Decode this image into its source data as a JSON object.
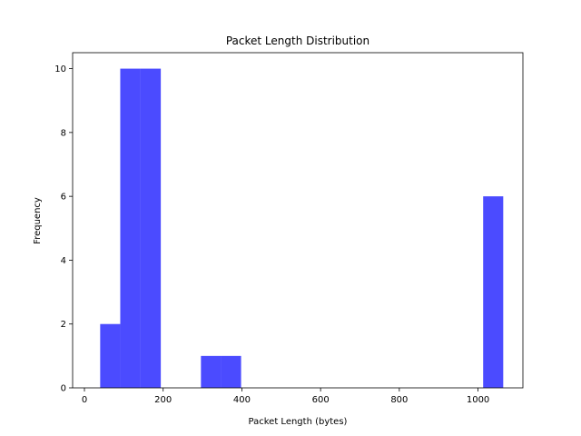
{
  "chart_data": {
    "type": "bar",
    "title": "Packet Length Distribution",
    "xlabel": "Packet Length (bytes)",
    "ylabel": "Frequency",
    "xlim": [
      -30,
      1114
    ],
    "ylim": [
      0,
      10.5
    ],
    "xticks": [
      0,
      200,
      400,
      600,
      800,
      1000
    ],
    "yticks": [
      0,
      2,
      4,
      6,
      8,
      10
    ],
    "grid": false,
    "legend": "none",
    "bar_color": "#4b4bff",
    "bins": [
      {
        "x0": 40,
        "x1": 91,
        "value": 2
      },
      {
        "x0": 91,
        "x1": 142,
        "value": 10
      },
      {
        "x0": 142,
        "x1": 194,
        "value": 10
      },
      {
        "x0": 194,
        "x1": 245,
        "value": 0
      },
      {
        "x0": 245,
        "x1": 296,
        "value": 0
      },
      {
        "x0": 296,
        "x1": 347,
        "value": 1
      },
      {
        "x0": 347,
        "x1": 398,
        "value": 1
      },
      {
        "x0": 398,
        "x1": 450,
        "value": 0
      },
      {
        "x0": 450,
        "x1": 501,
        "value": 0
      },
      {
        "x0": 501,
        "x1": 552,
        "value": 0
      },
      {
        "x0": 552,
        "x1": 603,
        "value": 0
      },
      {
        "x0": 603,
        "x1": 654,
        "value": 0
      },
      {
        "x0": 654,
        "x1": 706,
        "value": 0
      },
      {
        "x0": 706,
        "x1": 757,
        "value": 0
      },
      {
        "x0": 757,
        "x1": 808,
        "value": 0
      },
      {
        "x0": 808,
        "x1": 859,
        "value": 0
      },
      {
        "x0": 859,
        "x1": 910,
        "value": 0
      },
      {
        "x0": 910,
        "x1": 962,
        "value": 0
      },
      {
        "x0": 962,
        "x1": 1013,
        "value": 0
      },
      {
        "x0": 1013,
        "x1": 1064,
        "value": 6
      }
    ]
  }
}
